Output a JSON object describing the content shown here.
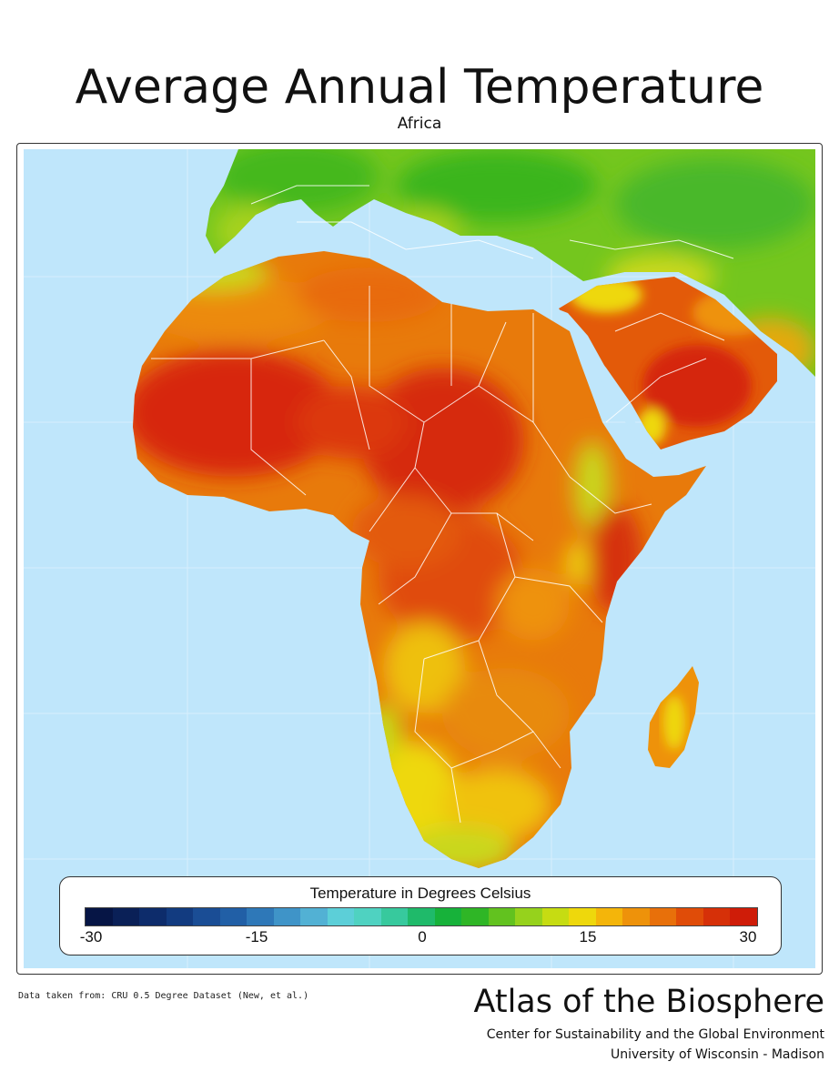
{
  "header": {
    "title": "Average Annual Temperature",
    "subtitle": "Africa"
  },
  "map": {
    "region": "Africa",
    "ocean_color": "#bfe6fb",
    "coldest_shown_color": "#66c61c",
    "hottest_shown_color": "#d41c08",
    "border_color": "#ffffff"
  },
  "legend": {
    "title": "Temperature in Degrees Celsius",
    "ticks": [
      "-30",
      "-15",
      "0",
      "15",
      "30"
    ],
    "tick_values": [
      -30,
      -15,
      0,
      15,
      30
    ],
    "range": [
      -30,
      30
    ],
    "colors": [
      "#061545",
      "#0a2057",
      "#0d2c6b",
      "#123b80",
      "#1a4d95",
      "#215fa6",
      "#2e78b8",
      "#3f94c8",
      "#52b1d4",
      "#5ccfd8",
      "#4fd2c1",
      "#37c99d",
      "#1fba6a",
      "#17b23a",
      "#2fb626",
      "#62c21f",
      "#96d21c",
      "#c6dc12",
      "#eed80c",
      "#f4b50a",
      "#ee920a",
      "#e8700a",
      "#e04c08",
      "#d63008",
      "#cf1c08"
    ]
  },
  "footer": {
    "source": "Data taken from: CRU 0.5 Degree Dataset (New, et al.)",
    "atlas": "Atlas of the Biosphere",
    "org_line1": "Center for Sustainability and the Global Environment",
    "org_line2": "University of Wisconsin - Madison"
  }
}
